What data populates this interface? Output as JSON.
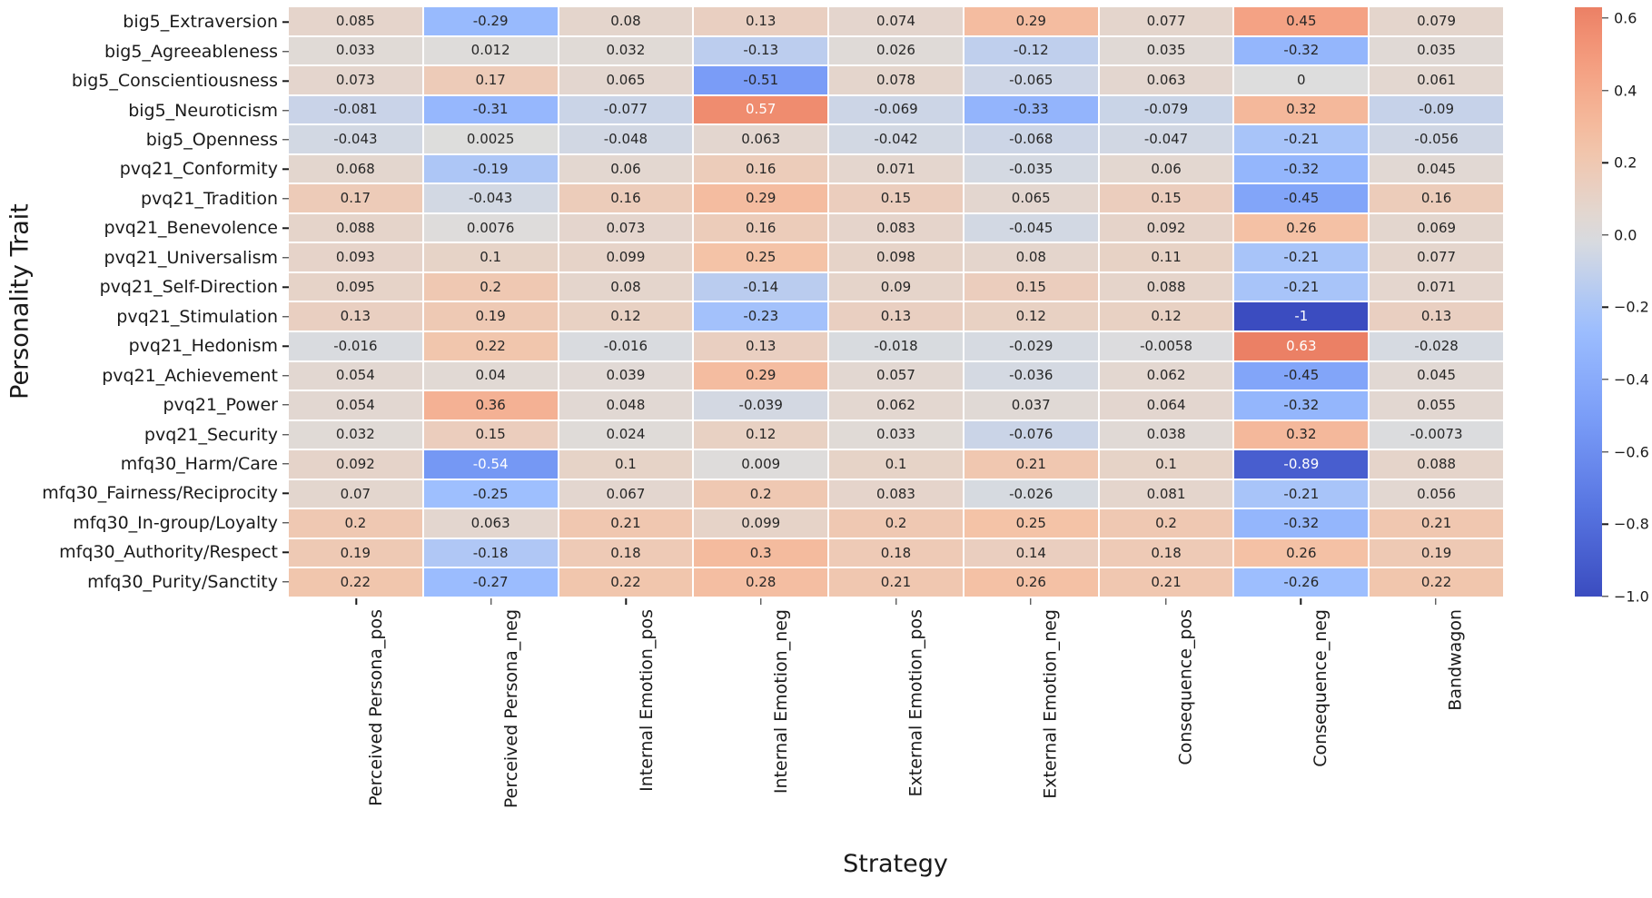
{
  "figure": {
    "x_axis_title": "Strategy",
    "y_axis_title": "Personality Trait"
  },
  "chart_data": {
    "type": "heatmap",
    "title": "",
    "xlabel": "Strategy",
    "ylabel": "Personality Trait",
    "colormap": "coolwarm",
    "grid": false,
    "x_categories": [
      "Perceived Persona_pos",
      "Perceived Persona_neg",
      "Internal Emotion_pos",
      "Internal Emotion_neg",
      "External Emotion_pos",
      "External Emotion_neg",
      "Consequence_pos",
      "Consequence_neg",
      "Bandwagon"
    ],
    "y_categories": [
      "big5_Extraversion",
      "big5_Agreeableness",
      "big5_Conscientiousness",
      "big5_Neuroticism",
      "big5_Openness",
      "pvq21_Conformity",
      "pvq21_Tradition",
      "pvq21_Benevolence",
      "pvq21_Universalism",
      "pvq21_Self-Direction",
      "pvq21_Stimulation",
      "pvq21_Hedonism",
      "pvq21_Achievement",
      "pvq21_Power",
      "pvq21_Security",
      "mfq30_Harm/Care",
      "mfq30_Fairness/Reciprocity",
      "mfq30_In-group/Loyalty",
      "mfq30_Authority/Respect",
      "mfq30_Purity/Sanctity"
    ],
    "values": [
      [
        0.085,
        -0.29,
        0.08,
        0.13,
        0.074,
        0.29,
        0.077,
        0.45,
        0.079
      ],
      [
        0.033,
        0.012,
        0.032,
        -0.13,
        0.026,
        -0.12,
        0.035,
        -0.32,
        0.035
      ],
      [
        0.073,
        0.17,
        0.065,
        -0.51,
        0.078,
        -0.065,
        0.063,
        0,
        0.061
      ],
      [
        -0.081,
        -0.31,
        -0.077,
        0.57,
        -0.069,
        -0.33,
        -0.079,
        0.32,
        -0.09
      ],
      [
        -0.043,
        0.0025,
        -0.048,
        0.063,
        -0.042,
        -0.068,
        -0.047,
        -0.21,
        -0.056
      ],
      [
        0.068,
        -0.19,
        0.06,
        0.16,
        0.071,
        -0.035,
        0.06,
        -0.32,
        0.045
      ],
      [
        0.17,
        -0.043,
        0.16,
        0.29,
        0.15,
        0.065,
        0.15,
        -0.45,
        0.16
      ],
      [
        0.088,
        0.0076,
        0.073,
        0.16,
        0.083,
        -0.045,
        0.092,
        0.26,
        0.069
      ],
      [
        0.093,
        0.1,
        0.099,
        0.25,
        0.098,
        0.08,
        0.11,
        -0.21,
        0.077
      ],
      [
        0.095,
        0.2,
        0.08,
        -0.14,
        0.09,
        0.15,
        0.088,
        -0.21,
        0.071
      ],
      [
        0.13,
        0.19,
        0.12,
        -0.23,
        0.13,
        0.12,
        0.12,
        -1,
        0.13
      ],
      [
        -0.016,
        0.22,
        -0.016,
        0.13,
        -0.018,
        -0.029,
        -0.0058,
        0.63,
        -0.028
      ],
      [
        0.054,
        0.04,
        0.039,
        0.29,
        0.057,
        -0.036,
        0.062,
        -0.45,
        0.045
      ],
      [
        0.054,
        0.36,
        0.048,
        -0.039,
        0.062,
        0.037,
        0.064,
        -0.32,
        0.055
      ],
      [
        0.032,
        0.15,
        0.024,
        0.12,
        0.033,
        -0.076,
        0.038,
        0.32,
        -0.0073
      ],
      [
        0.092,
        -0.54,
        0.1,
        0.009,
        0.1,
        0.21,
        0.1,
        -0.89,
        0.088
      ],
      [
        0.07,
        -0.25,
        0.067,
        0.2,
        0.083,
        -0.026,
        0.081,
        -0.21,
        0.056
      ],
      [
        0.2,
        0.063,
        0.21,
        0.099,
        0.2,
        0.25,
        0.2,
        -0.32,
        0.21
      ],
      [
        0.19,
        -0.18,
        0.18,
        0.3,
        0.18,
        0.14,
        0.18,
        0.26,
        0.19
      ],
      [
        0.22,
        -0.27,
        0.22,
        0.28,
        0.21,
        0.26,
        0.21,
        -0.26,
        0.22
      ]
    ],
    "colorbar": {
      "position": "right",
      "vmin": -1.0,
      "vmax": 0.63,
      "center": 0,
      "tick_values": [
        0.6,
        0.4,
        0.2,
        0.0,
        -0.2,
        -0.4,
        -0.6,
        -0.8,
        -1.0
      ],
      "tick_labels": [
        "0.6",
        "0.4",
        "0.2",
        "0.0",
        "−0.2",
        "−0.4",
        "−0.6",
        "−0.8",
        "−1.0"
      ]
    },
    "colors": {
      "min_blue": "#3b4cc0",
      "zero_gray": "#dddddd",
      "max_salmon": "#e8765b",
      "annotation_dark": "#262626",
      "annotation_light": "#ffffff",
      "tick_text": "#1a1a1a"
    }
  }
}
